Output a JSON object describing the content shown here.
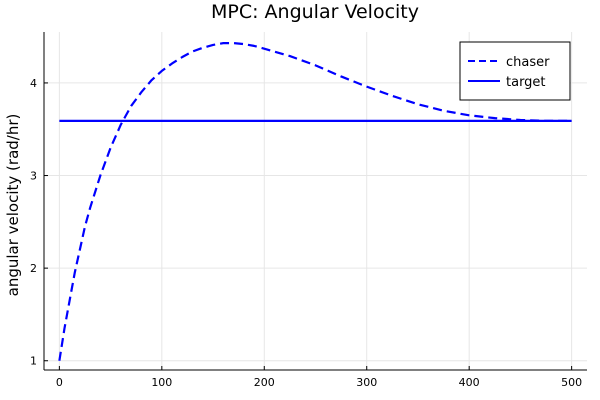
{
  "chart_data": {
    "type": "line",
    "title": "MPC: Angular Velocity",
    "xlabel": "",
    "ylabel": "angular velocity (rad/hr)",
    "xlim": [
      -15,
      515
    ],
    "ylim": [
      0.9,
      4.55
    ],
    "xticks": [
      0,
      100,
      200,
      300,
      400,
      500
    ],
    "yticks": [
      1,
      2,
      3,
      4
    ],
    "grid": true,
    "legend_position": "top-right",
    "series": [
      {
        "name": "chaser",
        "style": "dashed",
        "color": "#0000ff",
        "x": [
          0,
          5,
          10,
          15,
          20,
          25,
          30,
          40,
          50,
          60,
          70,
          80,
          90,
          100,
          110,
          120,
          130,
          140,
          150,
          160,
          165,
          170,
          180,
          190,
          200,
          225,
          250,
          275,
          300,
          325,
          350,
          375,
          400,
          425,
          450,
          475,
          500
        ],
        "values": [
          1.0,
          1.35,
          1.65,
          1.95,
          2.2,
          2.45,
          2.65,
          3.0,
          3.3,
          3.55,
          3.75,
          3.9,
          4.03,
          4.13,
          4.21,
          4.28,
          4.34,
          4.38,
          4.41,
          4.43,
          4.43,
          4.43,
          4.42,
          4.4,
          4.37,
          4.29,
          4.19,
          4.07,
          3.96,
          3.86,
          3.77,
          3.7,
          3.65,
          3.62,
          3.6,
          3.59,
          3.59
        ]
      },
      {
        "name": "target",
        "style": "solid",
        "color": "#0000ff",
        "x": [
          0,
          500
        ],
        "values": [
          3.59,
          3.59
        ]
      }
    ]
  }
}
